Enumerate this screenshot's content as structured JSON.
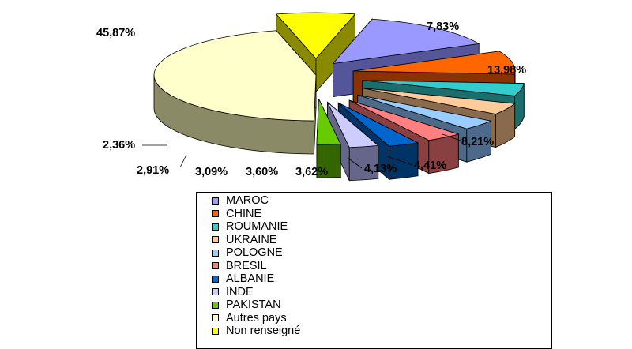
{
  "chart_data": {
    "type": "pie",
    "title": "",
    "slices": [
      {
        "name": "MAROC",
        "value": 13.98,
        "label": "13,98%",
        "color": "#9999ff",
        "side": "#55559a"
      },
      {
        "name": "CHINE",
        "value": 8.21,
        "label": "8,21%",
        "color": "#ff6600",
        "side": "#8a3300"
      },
      {
        "name": "ROUMANIE",
        "value": 4.41,
        "label": "4,41%",
        "color": "#33cccc",
        "side": "#1a6e6e"
      },
      {
        "name": "UKRAINE",
        "value": 4.13,
        "label": "4,13%",
        "color": "#ffcc99",
        "side": "#8a6a4d"
      },
      {
        "name": "POLOGNE",
        "value": 3.62,
        "label": "3,62%",
        "color": "#99ccff",
        "side": "#4d6a8a"
      },
      {
        "name": "BRESIL",
        "value": 3.6,
        "label": "3,60%",
        "color": "#ff8080",
        "side": "#8a4040"
      },
      {
        "name": "ALBANIE",
        "value": 3.09,
        "label": "3,09%",
        "color": "#0066cc",
        "side": "#003366"
      },
      {
        "name": "INDE",
        "value": 2.91,
        "label": "2,91%",
        "color": "#ccccff",
        "side": "#66668a"
      },
      {
        "name": "PAKISTAN",
        "value": 2.36,
        "label": "2,36%",
        "color": "#66cc00",
        "side": "#336600"
      },
      {
        "name": "Autres pays",
        "value": 45.87,
        "label": "45,87%",
        "color": "#ffffcc",
        "side": "#8a8a66"
      },
      {
        "name": "Non renseigné",
        "value": 7.83,
        "label": "7,83%",
        "color": "#ffff00",
        "side": "#8a8a00"
      }
    ],
    "legend_position": "bottom"
  }
}
